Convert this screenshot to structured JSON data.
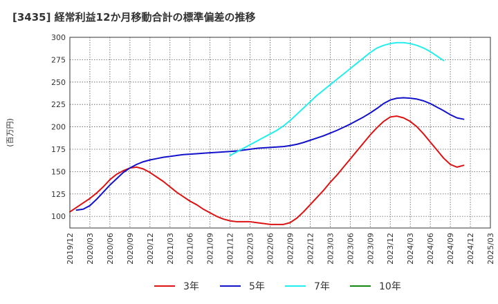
{
  "chart_data": {
    "type": "line",
    "title": "[3435]  経常利益12か月移動合計の標準偏差の推移",
    "ylabel": "(百万円)",
    "xlabel": "",
    "ylim": [
      87,
      300
    ],
    "yticks": [
      100,
      125,
      150,
      175,
      200,
      225,
      250,
      275,
      300
    ],
    "xrange": [
      "2019/12",
      "2025/03"
    ],
    "xticks": [
      "2019/12",
      "2020/03",
      "2020/06",
      "2020/09",
      "2020/12",
      "2021/03",
      "2021/06",
      "2021/09",
      "2021/12",
      "2022/03",
      "2022/06",
      "2022/09",
      "2022/12",
      "2023/03",
      "2023/06",
      "2023/09",
      "2023/12",
      "2024/03",
      "2024/06",
      "2024/09",
      "2024/12",
      "2025/03"
    ],
    "grid": true,
    "legend_position": "bottom",
    "series": [
      {
        "name": "3年",
        "color": "#dd1111",
        "points": [
          [
            "2019/12",
            105
          ],
          [
            "2020/01",
            110
          ],
          [
            "2020/02",
            115
          ],
          [
            "2020/03",
            120
          ],
          [
            "2020/04",
            126
          ],
          [
            "2020/05",
            133
          ],
          [
            "2020/06",
            141
          ],
          [
            "2020/07",
            147
          ],
          [
            "2020/08",
            151
          ],
          [
            "2020/09",
            154
          ],
          [
            "2020/10",
            155
          ],
          [
            "2020/11",
            153
          ],
          [
            "2020/12",
            149
          ],
          [
            "2021/01",
            144
          ],
          [
            "2021/02",
            139
          ],
          [
            "2021/03",
            133
          ],
          [
            "2021/04",
            127
          ],
          [
            "2021/05",
            122
          ],
          [
            "2021/06",
            117
          ],
          [
            "2021/07",
            113
          ],
          [
            "2021/08",
            108
          ],
          [
            "2021/09",
            104
          ],
          [
            "2021/10",
            100
          ],
          [
            "2021/11",
            97
          ],
          [
            "2021/12",
            95
          ],
          [
            "2022/01",
            94
          ],
          [
            "2022/02",
            94
          ],
          [
            "2022/03",
            94
          ],
          [
            "2022/04",
            93
          ],
          [
            "2022/05",
            92
          ],
          [
            "2022/06",
            91
          ],
          [
            "2022/07",
            91
          ],
          [
            "2022/08",
            91
          ],
          [
            "2022/09",
            93
          ],
          [
            "2022/10",
            98
          ],
          [
            "2022/11",
            105
          ],
          [
            "2022/12",
            113
          ],
          [
            "2023/01",
            121
          ],
          [
            "2023/02",
            129
          ],
          [
            "2023/03",
            138
          ],
          [
            "2023/04",
            146
          ],
          [
            "2023/05",
            155
          ],
          [
            "2023/06",
            164
          ],
          [
            "2023/07",
            173
          ],
          [
            "2023/08",
            182
          ],
          [
            "2023/09",
            191
          ],
          [
            "2023/10",
            199
          ],
          [
            "2023/11",
            206
          ],
          [
            "2023/12",
            211
          ],
          [
            "2024/01",
            212
          ],
          [
            "2024/02",
            210
          ],
          [
            "2024/03",
            206
          ],
          [
            "2024/04",
            200
          ],
          [
            "2024/05",
            192
          ],
          [
            "2024/06",
            183
          ],
          [
            "2024/07",
            174
          ],
          [
            "2024/08",
            165
          ],
          [
            "2024/09",
            158
          ],
          [
            "2024/10",
            155
          ],
          [
            "2024/11",
            157
          ]
        ]
      },
      {
        "name": "5年",
        "color": "#1111cc",
        "points": [
          [
            "2020/01",
            107
          ],
          [
            "2020/02",
            108
          ],
          [
            "2020/03",
            112
          ],
          [
            "2020/04",
            119
          ],
          [
            "2020/05",
            127
          ],
          [
            "2020/06",
            135
          ],
          [
            "2020/07",
            142
          ],
          [
            "2020/08",
            149
          ],
          [
            "2020/09",
            154
          ],
          [
            "2020/10",
            158
          ],
          [
            "2020/11",
            161
          ],
          [
            "2020/12",
            163
          ],
          [
            "2021/01",
            164.5
          ],
          [
            "2021/02",
            166
          ],
          [
            "2021/03",
            167
          ],
          [
            "2021/04",
            168
          ],
          [
            "2021/05",
            169
          ],
          [
            "2021/06",
            169.5
          ],
          [
            "2021/07",
            170
          ],
          [
            "2021/08",
            170.5
          ],
          [
            "2021/09",
            171
          ],
          [
            "2021/10",
            171.5
          ],
          [
            "2021/11",
            172
          ],
          [
            "2021/12",
            172.5
          ],
          [
            "2022/01",
            173
          ],
          [
            "2022/02",
            174
          ],
          [
            "2022/03",
            175
          ],
          [
            "2022/04",
            176
          ],
          [
            "2022/05",
            176.5
          ],
          [
            "2022/06",
            177
          ],
          [
            "2022/07",
            177.5
          ],
          [
            "2022/08",
            178
          ],
          [
            "2022/09",
            179
          ],
          [
            "2022/10",
            180.5
          ],
          [
            "2022/11",
            182.5
          ],
          [
            "2022/12",
            185
          ],
          [
            "2023/01",
            187.5
          ],
          [
            "2023/02",
            190
          ],
          [
            "2023/03",
            193
          ],
          [
            "2023/04",
            196
          ],
          [
            "2023/05",
            199.5
          ],
          [
            "2023/06",
            203
          ],
          [
            "2023/07",
            207
          ],
          [
            "2023/08",
            211
          ],
          [
            "2023/09",
            215.5
          ],
          [
            "2023/10",
            220.5
          ],
          [
            "2023/11",
            226
          ],
          [
            "2023/12",
            230
          ],
          [
            "2024/01",
            232
          ],
          [
            "2024/02",
            232.5
          ],
          [
            "2024/03",
            232
          ],
          [
            "2024/04",
            231
          ],
          [
            "2024/05",
            229
          ],
          [
            "2024/06",
            226
          ],
          [
            "2024/07",
            222
          ],
          [
            "2024/08",
            218
          ],
          [
            "2024/09",
            213.5
          ],
          [
            "2024/10",
            210
          ],
          [
            "2024/11",
            208.5
          ]
        ]
      },
      {
        "name": "7年",
        "color": "#22eeee",
        "points": [
          [
            "2021/12",
            168
          ],
          [
            "2022/01",
            172
          ],
          [
            "2022/02",
            176
          ],
          [
            "2022/03",
            180
          ],
          [
            "2022/04",
            184
          ],
          [
            "2022/05",
            188
          ],
          [
            "2022/06",
            192
          ],
          [
            "2022/07",
            196
          ],
          [
            "2022/08",
            201
          ],
          [
            "2022/09",
            207
          ],
          [
            "2022/10",
            214
          ],
          [
            "2022/11",
            221
          ],
          [
            "2022/12",
            228
          ],
          [
            "2023/01",
            235
          ],
          [
            "2023/02",
            241
          ],
          [
            "2023/03",
            247
          ],
          [
            "2023/04",
            253
          ],
          [
            "2023/05",
            259
          ],
          [
            "2023/06",
            265
          ],
          [
            "2023/07",
            271
          ],
          [
            "2023/08",
            277
          ],
          [
            "2023/09",
            283
          ],
          [
            "2023/10",
            288
          ],
          [
            "2023/11",
            291
          ],
          [
            "2023/12",
            293
          ],
          [
            "2024/01",
            294
          ],
          [
            "2024/02",
            294
          ],
          [
            "2024/03",
            293
          ],
          [
            "2024/04",
            291
          ],
          [
            "2024/05",
            288
          ],
          [
            "2024/06",
            284
          ],
          [
            "2024/07",
            279
          ],
          [
            "2024/08",
            274
          ]
        ]
      },
      {
        "name": "10年",
        "color": "#118811",
        "points": []
      }
    ]
  }
}
